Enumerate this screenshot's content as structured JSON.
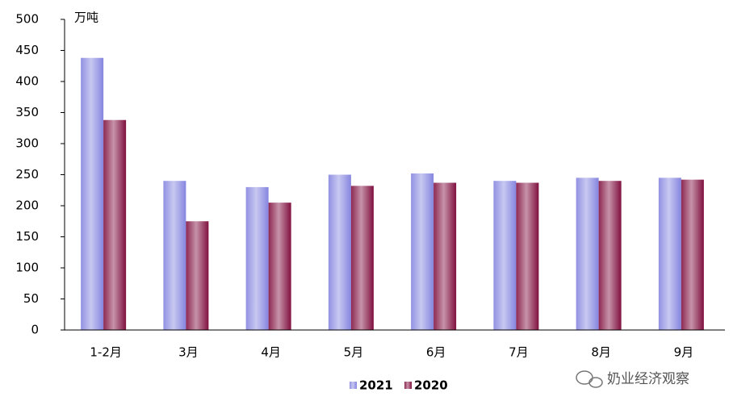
{
  "chart_data": {
    "type": "bar",
    "y_label": "万吨",
    "categories": [
      "1-2月",
      "3月",
      "4月",
      "5月",
      "6月",
      "7月",
      "8月",
      "9月"
    ],
    "series": [
      {
        "name": "2021",
        "color": "#8585e0",
        "values": [
          438,
          240,
          230,
          250,
          252,
          240,
          245,
          245
        ]
      },
      {
        "name": "2020",
        "color": "#80103f",
        "values": [
          338,
          175,
          205,
          232,
          237,
          237,
          240,
          242
        ]
      }
    ],
    "ylim": [
      0,
      500
    ],
    "yticks": [
      0,
      50,
      100,
      150,
      200,
      250,
      300,
      350,
      400,
      450,
      500
    ],
    "legend": "bottom",
    "watermark": "奶业经济观察"
  }
}
